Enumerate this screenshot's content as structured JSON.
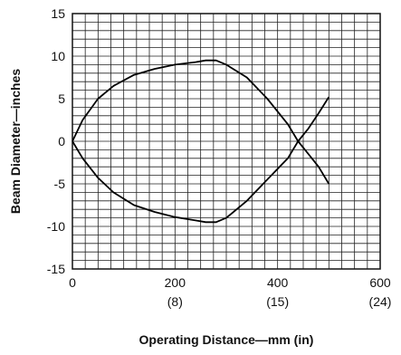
{
  "chart_data": {
    "type": "line",
    "title": "",
    "xlabel": "Operating Distance—mm (in)",
    "ylabel": "Beam Diameter—inches",
    "xlim": [
      0,
      600
    ],
    "ylim": [
      -15,
      15
    ],
    "grid": true,
    "x_ticks": [
      {
        "value": 0,
        "label": "0",
        "sub": ""
      },
      {
        "value": 200,
        "label": "200",
        "sub": "(8)"
      },
      {
        "value": 400,
        "label": "400",
        "sub": "(15)"
      },
      {
        "value": 600,
        "label": "600",
        "sub": "(24)"
      }
    ],
    "y_ticks": [
      {
        "value": 15,
        "label": "15"
      },
      {
        "value": 10,
        "label": "10"
      },
      {
        "value": 5,
        "label": "5"
      },
      {
        "value": 0,
        "label": "0"
      },
      {
        "value": -5,
        "label": "-5"
      },
      {
        "value": -10,
        "label": "-10"
      },
      {
        "value": -15,
        "label": "-15"
      }
    ],
    "series": [
      {
        "x": [
          0,
          20,
          50,
          80,
          120,
          160,
          200,
          240,
          260,
          280,
          300,
          340,
          380,
          420,
          440,
          460,
          480,
          500
        ],
        "y": [
          0,
          2.5,
          5,
          6.5,
          7.8,
          8.5,
          9,
          9.3,
          9.5,
          9.5,
          9,
          7.5,
          5,
          2,
          0,
          -1.5,
          -3,
          -5
        ]
      },
      {
        "x": [
          0,
          20,
          50,
          80,
          120,
          160,
          200,
          240,
          260,
          280,
          300,
          340,
          380,
          420,
          440,
          460,
          480,
          500
        ],
        "y": [
          0,
          -2,
          -4.3,
          -6,
          -7.5,
          -8.3,
          -8.9,
          -9.3,
          -9.5,
          -9.5,
          -9,
          -7,
          -4.5,
          -2,
          0,
          1.5,
          3.3,
          5.2
        ]
      }
    ]
  }
}
